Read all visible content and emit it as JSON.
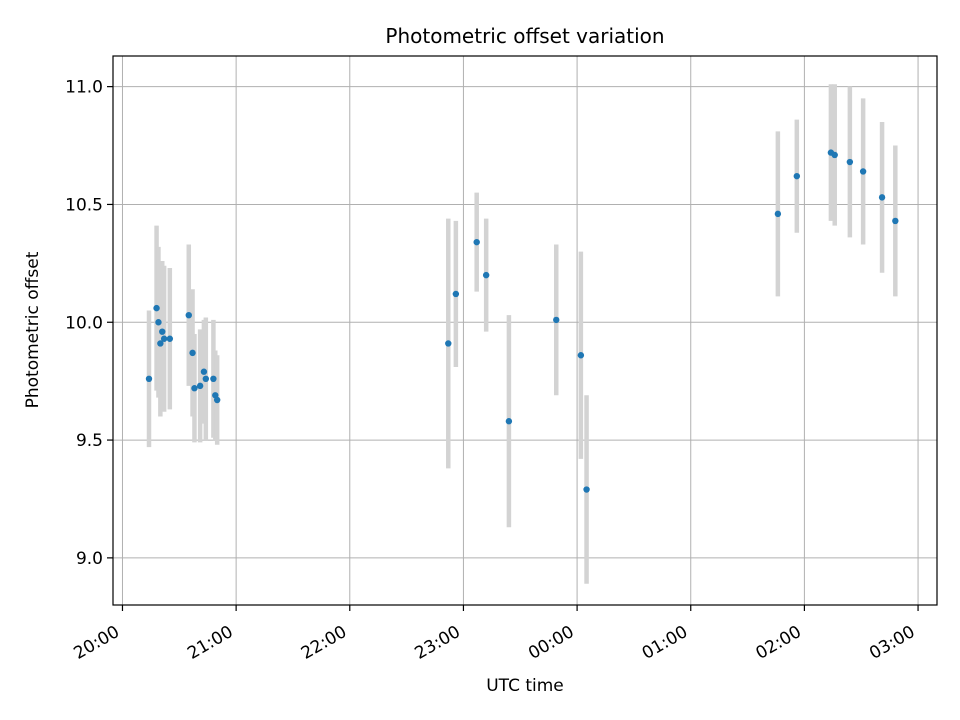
{
  "chart_data": {
    "type": "scatter",
    "title": "Photometric offset variation",
    "xlabel": "UTC time",
    "ylabel": "Photometric offset",
    "x_type": "time",
    "xlim": [
      "2023-01-01T19:55:00",
      "2023-01-02T03:10:00"
    ],
    "ylim": [
      8.8,
      11.13
    ],
    "x_ticks": [
      {
        "value": "2023-01-01T20:00:00",
        "label": "20:00"
      },
      {
        "value": "2023-01-01T21:00:00",
        "label": "21:00"
      },
      {
        "value": "2023-01-01T22:00:00",
        "label": "22:00"
      },
      {
        "value": "2023-01-01T23:00:00",
        "label": "23:00"
      },
      {
        "value": "2023-01-02T00:00:00",
        "label": "00:00"
      },
      {
        "value": "2023-01-02T01:00:00",
        "label": "01:00"
      },
      {
        "value": "2023-01-02T02:00:00",
        "label": "02:00"
      },
      {
        "value": "2023-01-02T03:00:00",
        "label": "03:00"
      }
    ],
    "y_ticks": [
      9.0,
      9.5,
      10.0,
      10.5,
      11.0
    ],
    "y_tick_labels": [
      "9.0",
      "9.5",
      "10.0",
      "10.5",
      "11.0"
    ],
    "grid": true,
    "colors": {
      "point": "#1f77b4",
      "errorbar": "#d3d3d3",
      "grid": "#b0b0b0",
      "axis": "#000000"
    },
    "points": [
      {
        "x": "2023-01-01T20:14:00",
        "y": 9.76,
        "yerr": 0.29
      },
      {
        "x": "2023-01-01T20:18:00",
        "y": 10.06,
        "yerr": 0.35
      },
      {
        "x": "2023-01-01T20:19:00",
        "y": 10.0,
        "yerr": 0.32
      },
      {
        "x": "2023-01-01T20:20:00",
        "y": 9.91,
        "yerr": 0.31
      },
      {
        "x": "2023-01-01T20:21:00",
        "y": 9.96,
        "yerr": 0.3
      },
      {
        "x": "2023-01-01T20:22:00",
        "y": 9.93,
        "yerr": 0.31
      },
      {
        "x": "2023-01-01T20:25:00",
        "y": 9.93,
        "yerr": 0.3
      },
      {
        "x": "2023-01-01T20:35:00",
        "y": 10.03,
        "yerr": 0.3
      },
      {
        "x": "2023-01-01T20:37:00",
        "y": 9.87,
        "yerr": 0.27
      },
      {
        "x": "2023-01-01T20:38:00",
        "y": 9.72,
        "yerr": 0.23
      },
      {
        "x": "2023-01-01T20:41:00",
        "y": 9.73,
        "yerr": 0.24
      },
      {
        "x": "2023-01-01T20:43:00",
        "y": 9.79,
        "yerr": 0.22
      },
      {
        "x": "2023-01-01T20:44:00",
        "y": 9.76,
        "yerr": 0.26
      },
      {
        "x": "2023-01-01T20:48:00",
        "y": 9.76,
        "yerr": 0.25
      },
      {
        "x": "2023-01-01T20:49:00",
        "y": 9.69,
        "yerr": 0.19
      },
      {
        "x": "2023-01-01T20:50:00",
        "y": 9.67,
        "yerr": 0.19
      },
      {
        "x": "2023-01-01T22:52:00",
        "y": 9.91,
        "yerr": 0.53
      },
      {
        "x": "2023-01-01T22:56:00",
        "y": 10.12,
        "yerr": 0.31
      },
      {
        "x": "2023-01-01T23:07:00",
        "y": 10.34,
        "yerr": 0.21
      },
      {
        "x": "2023-01-01T23:12:00",
        "y": 10.2,
        "yerr": 0.24
      },
      {
        "x": "2023-01-01T23:24:00",
        "y": 9.58,
        "yerr": 0.45
      },
      {
        "x": "2023-01-01T23:49:00",
        "y": 10.01,
        "yerr": 0.32
      },
      {
        "x": "2023-01-02T00:02:00",
        "y": 9.86,
        "yerr": 0.44
      },
      {
        "x": "2023-01-02T00:05:00",
        "y": 9.29,
        "yerr": 0.4
      },
      {
        "x": "2023-01-02T01:46:00",
        "y": 10.46,
        "yerr": 0.35
      },
      {
        "x": "2023-01-02T01:56:00",
        "y": 10.62,
        "yerr": 0.24
      },
      {
        "x": "2023-01-02T02:14:00",
        "y": 10.72,
        "yerr": 0.29
      },
      {
        "x": "2023-01-02T02:16:00",
        "y": 10.71,
        "yerr": 0.3
      },
      {
        "x": "2023-01-02T02:24:00",
        "y": 10.68,
        "yerr": 0.32
      },
      {
        "x": "2023-01-02T02:31:00",
        "y": 10.64,
        "yerr": 0.31
      },
      {
        "x": "2023-01-02T02:41:00",
        "y": 10.53,
        "yerr": 0.32
      },
      {
        "x": "2023-01-02T02:48:00",
        "y": 10.43,
        "yerr": 0.32
      }
    ]
  }
}
